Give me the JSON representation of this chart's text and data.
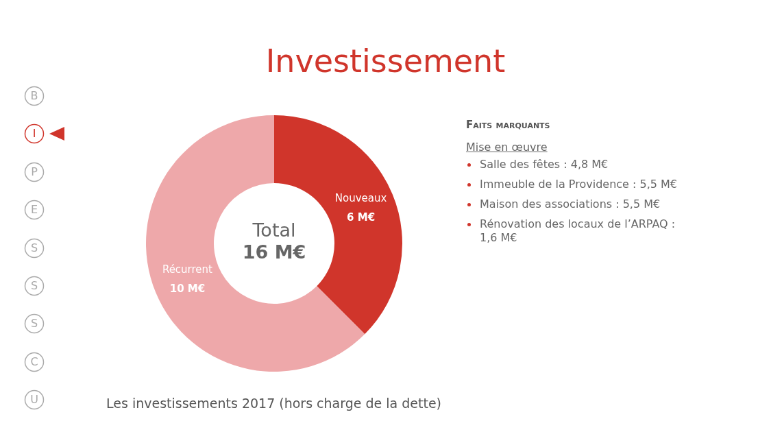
{
  "chart_data": [
    {
      "type": "donut",
      "title": "Investissement",
      "categories": [
        "Nouveaux",
        "Récurrent"
      ],
      "values": [
        6,
        10
      ],
      "colors": [
        "#d0352b",
        "#eea8aa"
      ],
      "value_labels": [
        "6 M€",
        "10 M€"
      ],
      "legend": false,
      "annotations": [
        "Total",
        "16 M€",
        "Les investissements 2017 (hors charge de la dette)"
      ]
    },
    {
      "type": "other",
      "title": "Faits marquants",
      "subtitle": "Mise en œuvre",
      "annotations": [
        "Salle des fêtes : 4,8 M€",
        "Immeuble de la Providence : 5,5 M€",
        "Maison des associations : 5,5 M€",
        "Rénovation des locaux de l’ARPAQ : 1,6 M€"
      ]
    },
    {
      "type": "other",
      "annotations": [
        "B",
        "I",
        "P",
        "E",
        "S",
        "S",
        "S",
        "C",
        "U"
      ]
    }
  ]
}
